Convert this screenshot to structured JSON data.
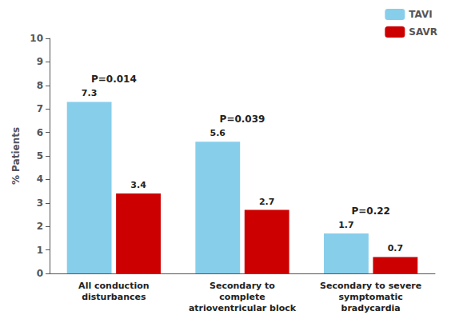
{
  "chart_data": {
    "type": "bar",
    "categories": [
      "All conduction\ndisturbances",
      "Secondary to\ncomplete\natrioventricular block",
      "Secondary to severe\nsymptomatic\nbradycardia"
    ],
    "series": [
      {
        "name": "TAVI",
        "color": "#87CEEB",
        "values": [
          7.3,
          5.6,
          1.7
        ]
      },
      {
        "name": "SAVR",
        "color": "#CC0000",
        "values": [
          3.4,
          2.7,
          0.7
        ]
      }
    ],
    "ylabel": "% Patients",
    "ylim": [
      0,
      10
    ],
    "yticks": [
      0,
      1,
      2,
      3,
      4,
      5,
      6,
      7,
      8,
      9,
      10
    ],
    "annotations": [
      "P=0.014",
      "P=0.039",
      "P=0.22"
    ],
    "data_labels": true,
    "legend": "upper right",
    "grid": false
  }
}
